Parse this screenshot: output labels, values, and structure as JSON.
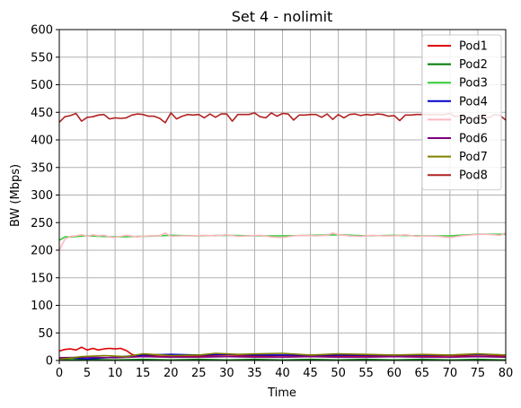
{
  "chart_data": {
    "type": "line",
    "title": "Set 4 - nolimit",
    "xlabel": "Time",
    "ylabel": "BW (Mbps)",
    "xlim": [
      0,
      80
    ],
    "ylim": [
      0,
      600
    ],
    "xticks": [
      0,
      5,
      10,
      15,
      20,
      25,
      30,
      35,
      40,
      45,
      50,
      55,
      60,
      65,
      70,
      75,
      80
    ],
    "yticks": [
      0,
      50,
      100,
      150,
      200,
      250,
      300,
      350,
      400,
      450,
      500,
      550,
      600
    ],
    "grid": true,
    "legend_position": "top-right",
    "series": [
      {
        "name": "Pod1",
        "color": "#e00000",
        "x": [
          0,
          1,
          2,
          3,
          4,
          5,
          6,
          7,
          8,
          9,
          10,
          11,
          12,
          13,
          14,
          15,
          20,
          25,
          30,
          35,
          40,
          45,
          50,
          55,
          60,
          65,
          70,
          75,
          80
        ],
        "y": [
          17,
          20,
          21,
          19,
          24,
          19,
          22,
          19,
          21,
          22,
          21,
          22,
          18,
          11,
          8,
          8,
          7,
          8,
          8,
          8,
          9,
          8,
          8,
          8,
          8,
          8,
          9,
          8,
          8
        ]
      },
      {
        "name": "Pod2",
        "color": "#007800",
        "x": [
          0,
          5,
          10,
          15,
          20,
          25,
          30,
          35,
          40,
          45,
          50,
          55,
          60,
          65,
          70,
          75,
          80
        ],
        "y": [
          1,
          2,
          1,
          2,
          1,
          2,
          1,
          2,
          1,
          2,
          1,
          2,
          1,
          2,
          1,
          2,
          1
        ]
      },
      {
        "name": "Pod3",
        "color": "#33cc33",
        "x": [
          0,
          1,
          2,
          5,
          10,
          15,
          20,
          25,
          30,
          35,
          40,
          45,
          50,
          55,
          60,
          65,
          70,
          75,
          80
        ],
        "y": [
          218,
          224,
          224,
          226,
          224,
          225,
          227,
          226,
          227,
          226,
          226,
          227,
          228,
          226,
          227,
          226,
          226,
          229,
          229
        ]
      },
      {
        "name": "Pod4",
        "color": "#0000cc",
        "x": [
          0,
          2,
          5,
          10,
          15,
          20,
          25,
          30,
          35,
          40,
          45,
          50,
          55,
          60,
          65,
          70,
          75,
          80
        ],
        "y": [
          3,
          5,
          3,
          6,
          10,
          11,
          10,
          11,
          10,
          10,
          10,
          10,
          10,
          10,
          10,
          10,
          11,
          10
        ]
      },
      {
        "name": "Pod5",
        "color": "#ffb6c1",
        "x": [
          0,
          1,
          2,
          3,
          4,
          5,
          6,
          7,
          8,
          9,
          10,
          12,
          14,
          16,
          18,
          19,
          20,
          22,
          24,
          26,
          28,
          30,
          32,
          34,
          36,
          38,
          40,
          42,
          44,
          46,
          48,
          49,
          50,
          52,
          54,
          56,
          58,
          60,
          62,
          64,
          66,
          68,
          70,
          72,
          74,
          76,
          78,
          79,
          80
        ],
        "y": [
          200,
          220,
          225,
          226,
          228,
          225,
          228,
          226,
          227,
          224,
          223,
          227,
          224,
          226,
          226,
          231,
          225,
          226,
          226,
          227,
          226,
          228,
          225,
          226,
          227,
          224,
          223,
          226,
          227,
          226,
          227,
          231,
          228,
          226,
          225,
          227,
          226,
          226,
          228,
          225,
          226,
          225,
          223,
          226,
          228,
          229,
          228,
          227,
          231
        ]
      },
      {
        "name": "Pod6",
        "color": "#800080",
        "x": [
          0,
          5,
          10,
          15,
          20,
          25,
          30,
          35,
          40,
          45,
          50,
          55,
          60,
          65,
          70,
          75,
          80
        ],
        "y": [
          5,
          6,
          5,
          7,
          6,
          6,
          7,
          6,
          6,
          7,
          6,
          6,
          7,
          6,
          6,
          7,
          6
        ]
      },
      {
        "name": "Pod7",
        "color": "#808000",
        "x": [
          0,
          4,
          8,
          12,
          15,
          20,
          25,
          28,
          32,
          36,
          40,
          45,
          50,
          55,
          60,
          65,
          70,
          75,
          80
        ],
        "y": [
          2,
          7,
          9,
          7,
          12,
          9,
          10,
          13,
          11,
          12,
          13,
          10,
          12,
          11,
          10,
          11,
          10,
          12,
          10
        ]
      },
      {
        "name": "Pod8",
        "color": "#b22222",
        "x": [
          0,
          1,
          2,
          3,
          4,
          5,
          6,
          7,
          8,
          9,
          10,
          11,
          12,
          13,
          14,
          15,
          16,
          17,
          18,
          19,
          20,
          21,
          22,
          23,
          24,
          25,
          26,
          27,
          28,
          29,
          30,
          31,
          32,
          33,
          34,
          35,
          36,
          37,
          38,
          39,
          40,
          41,
          42,
          43,
          44,
          45,
          46,
          47,
          48,
          49,
          50,
          51,
          52,
          53,
          54,
          55,
          56,
          57,
          58,
          59,
          60,
          61,
          62,
          63,
          64,
          65,
          66,
          67,
          68,
          69,
          70,
          71,
          72,
          73,
          74,
          75,
          76,
          77,
          78,
          79,
          80
        ],
        "y": [
          432,
          442,
          444,
          448,
          434,
          441,
          442,
          445,
          446,
          438,
          440,
          439,
          440,
          445,
          447,
          446,
          443,
          443,
          439,
          431,
          449,
          438,
          443,
          446,
          445,
          446,
          440,
          447,
          441,
          447,
          447,
          434,
          446,
          446,
          446,
          449,
          442,
          440,
          449,
          443,
          448,
          447,
          436,
          445,
          445,
          446,
          446,
          441,
          447,
          437,
          446,
          440,
          446,
          447,
          444,
          446,
          445,
          447,
          446,
          443,
          444,
          435,
          445,
          445,
          446,
          446,
          446,
          446,
          446,
          446,
          448,
          442,
          444,
          440,
          438,
          436,
          442,
          440,
          446,
          444,
          436
        ]
      }
    ]
  }
}
